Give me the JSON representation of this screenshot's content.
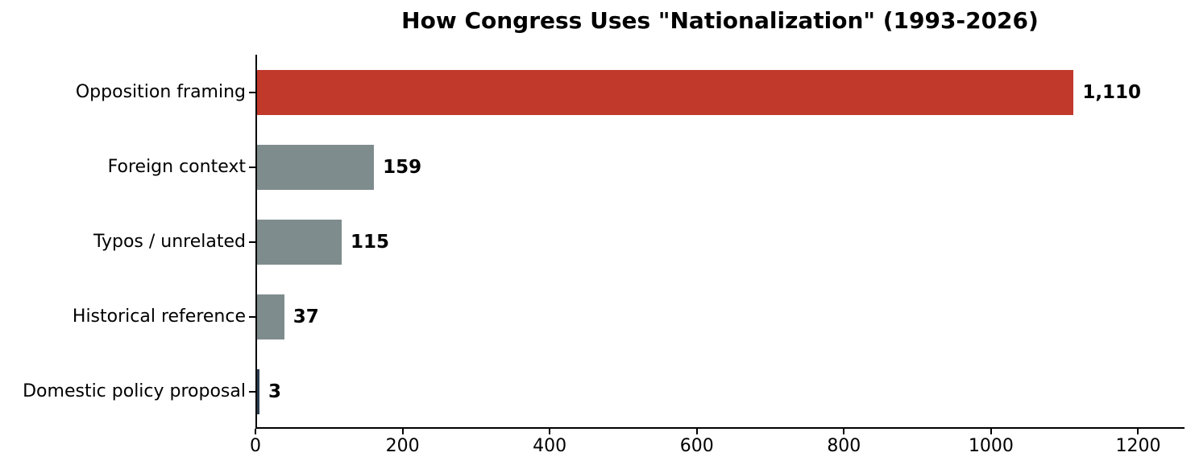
{
  "chart_data": {
    "type": "bar",
    "orientation": "horizontal",
    "title": "How Congress Uses \"Nationalization\" (1993-2026)",
    "categories": [
      "Opposition framing",
      "Foreign context",
      "Typos / unrelated",
      "Historical reference",
      "Domestic policy proposal"
    ],
    "values": [
      1110,
      159,
      115,
      37,
      3
    ],
    "value_labels": [
      "1,110",
      "159",
      "115",
      "37",
      "3"
    ],
    "bar_colors": [
      "#c0392b",
      "#7f8c8d",
      "#7f8c8d",
      "#7f8c8d",
      "#2c3e50"
    ],
    "x_ticks": [
      0,
      200,
      400,
      600,
      800,
      1000,
      1200
    ],
    "xlim": [
      0,
      1263
    ],
    "xlabel": "",
    "ylabel": "",
    "grid": false,
    "legend_position": "none",
    "colors": {
      "highlight": "#c0392b",
      "default": "#7f8c8d",
      "dark": "#2c3e50",
      "axis": "#000000",
      "text": "#000000",
      "background": "#ffffff"
    }
  }
}
